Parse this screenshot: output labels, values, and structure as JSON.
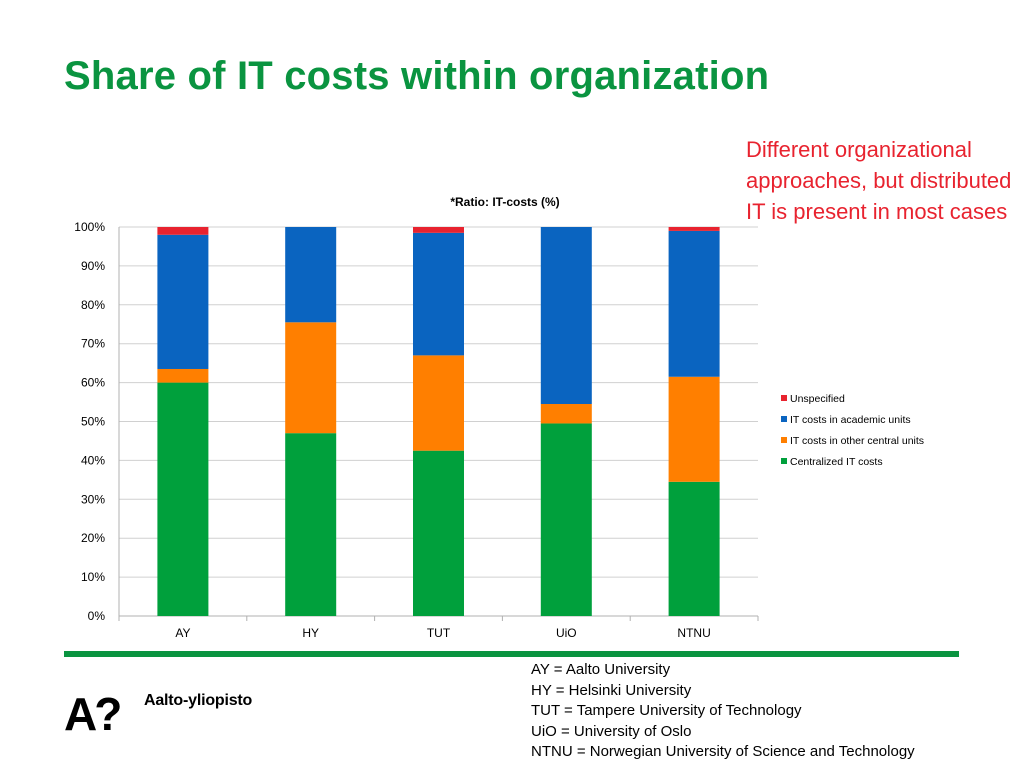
{
  "slide": {
    "title": "Share of IT costs within organization",
    "title_color": "#0a9440",
    "note": "Different organizational approaches, but distributed IT is present in most cases",
    "note_color": "#e8232f",
    "rule_color": "#0a9440"
  },
  "logo": {
    "mark_text": "A?",
    "name": "Aalto-yliopisto"
  },
  "abbreviations": [
    "AY = Aalto University",
    "HY = Helsinki University",
    "TUT = Tampere University of Technology",
    "UiO = University of Oslo",
    "NTNU = Norwegian University of Science and Technology"
  ],
  "chart_data": {
    "type": "bar",
    "stacked": true,
    "percent": true,
    "title": "*Ratio: IT-costs (%)",
    "xlabel": "",
    "ylabel": "",
    "ylim": [
      0,
      100
    ],
    "yticks": [
      "0%",
      "10%",
      "20%",
      "30%",
      "40%",
      "50%",
      "60%",
      "70%",
      "80%",
      "90%",
      "100%"
    ],
    "grid": true,
    "legend_position": "right",
    "categories": [
      "AY",
      "HY",
      "TUT",
      "UiO",
      "NTNU"
    ],
    "series": [
      {
        "name": "Centralized IT costs",
        "color": "#00a03c",
        "values": [
          60,
          47,
          42.5,
          49.5,
          34.5
        ]
      },
      {
        "name": "IT costs in other central units",
        "color": "#ff7f00",
        "values": [
          3.5,
          28.5,
          24.5,
          5,
          27
        ]
      },
      {
        "name": "IT costs in academic units",
        "color": "#0a64c0",
        "values": [
          34.5,
          24.5,
          31.5,
          45.5,
          37.5
        ]
      },
      {
        "name": "Unspecified",
        "color": "#e8232f",
        "values": [
          2,
          0,
          1.5,
          0,
          1
        ]
      }
    ]
  }
}
